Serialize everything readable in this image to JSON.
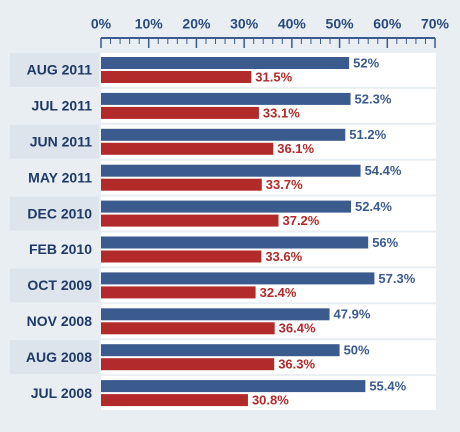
{
  "chart_data": {
    "type": "hbar",
    "categories": [
      "AUG 2011",
      "JUL 2011",
      "JUN 2011",
      "MAY 2011",
      "DEC 2010",
      "FEB 2010",
      "OCT 2009",
      "NOV 2008",
      "AUG 2008",
      "JUL 2008"
    ],
    "series": [
      {
        "color": "#3b5a8e",
        "values": [
          52,
          52.3,
          51.2,
          54.4,
          52.4,
          56,
          57.3,
          47.9,
          50,
          55.4
        ],
        "value_labels": [
          "52%",
          "52.3%",
          "51.2%",
          "54.4%",
          "52.4%",
          "56%",
          "57.3%",
          "47.9%",
          "50%",
          "55.4%"
        ]
      },
      {
        "color": "#b32a2a",
        "values": [
          31.5,
          33.1,
          36.1,
          33.7,
          37.2,
          33.6,
          32.4,
          36.4,
          36.3,
          30.8
        ],
        "value_labels": [
          "31.5%",
          "33.1%",
          "36.1%",
          "33.7%",
          "37.2%",
          "33.6%",
          "32.4%",
          "36.4%",
          "36.3%",
          "30.8%"
        ]
      }
    ],
    "xlim": [
      0,
      70
    ],
    "xticks": [
      {
        "value": 0,
        "label": "0%"
      },
      {
        "value": 10,
        "label": "10%"
      },
      {
        "value": 20,
        "label": "20%"
      },
      {
        "value": 30,
        "label": "30%"
      },
      {
        "value": 40,
        "label": "40%"
      },
      {
        "value": 50,
        "label": "50%"
      },
      {
        "value": 60,
        "label": "60%"
      },
      {
        "value": 70,
        "label": "70%"
      }
    ],
    "xminorticks": [
      2,
      4,
      6,
      8,
      12,
      14,
      16,
      18,
      22,
      24,
      26,
      28,
      32,
      34,
      36,
      38,
      42,
      44,
      46,
      48,
      52,
      54,
      56,
      58,
      62,
      64,
      66,
      68
    ]
  }
}
